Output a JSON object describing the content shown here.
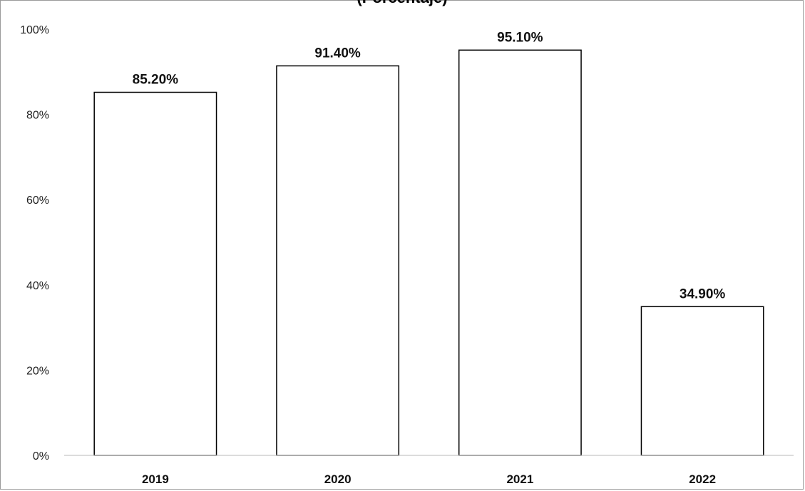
{
  "chart_data": {
    "type": "bar",
    "title": "(Porcentaje)",
    "categories": [
      "2019",
      "2020",
      "2021",
      "2022"
    ],
    "values": [
      85.2,
      91.4,
      95.1,
      34.9
    ],
    "data_labels": [
      "85.20%",
      "91.40%",
      "95.10%",
      "34.90%"
    ],
    "ylim": [
      0,
      100
    ],
    "y_ticks": [
      0,
      20,
      40,
      60,
      80,
      100
    ],
    "y_tick_labels": [
      "0%",
      "20%",
      "40%",
      "60%",
      "80%",
      "100%"
    ],
    "xlabel": "",
    "ylabel": "",
    "grid": false,
    "legend": "none",
    "colors": {
      "bar_fill": "#ffffff",
      "bar_stroke": "#000000",
      "axis": "#c8c8c8",
      "frame": "#9a9a9a"
    }
  }
}
